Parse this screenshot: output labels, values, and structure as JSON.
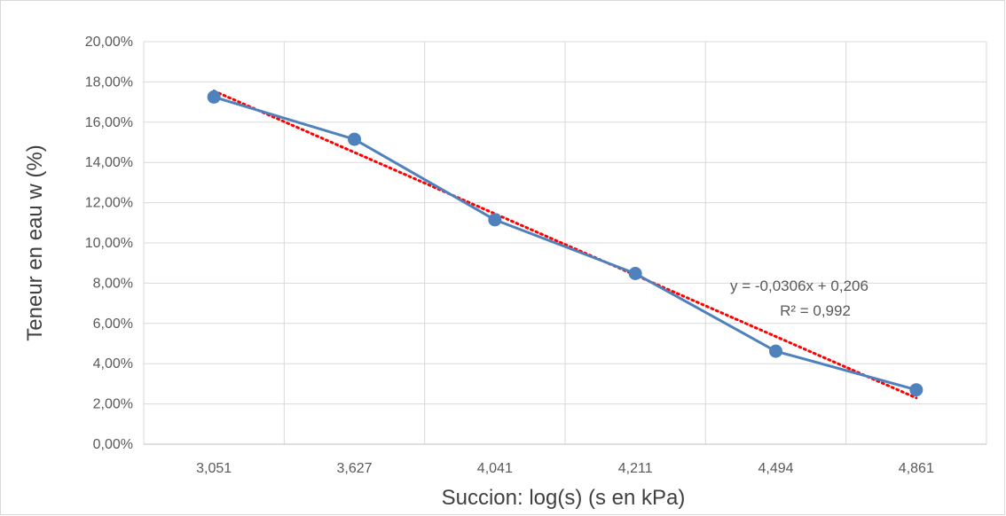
{
  "chart_data": {
    "type": "line",
    "title": "",
    "xlabel": "Succion: log(s) (s en kPa)",
    "ylabel": "Teneur en eau w (%)",
    "categories": [
      "3,051",
      "3,627",
      "4,041",
      "4,211",
      "4,494",
      "4,861"
    ],
    "series": [
      {
        "values": [
          0.1725,
          0.1515,
          0.1115,
          0.0848,
          0.0462,
          0.027
        ],
        "color": "#4f81bd",
        "marker": "circle"
      }
    ],
    "trendline": {
      "type": "linear",
      "color": "#ff0000",
      "style": "dotted",
      "start": 0.1755,
      "end": 0.023
    },
    "y_ticks": [
      "0,00%",
      "2,00%",
      "4,00%",
      "6,00%",
      "8,00%",
      "10,00%",
      "12,00%",
      "14,00%",
      "16,00%",
      "18,00%",
      "20,00%"
    ],
    "ylim": [
      0,
      0.2
    ],
    "grid": true,
    "legend": "none",
    "annotations": {
      "equation": "y = -0,0306x + 0,206",
      "r_squared": "R² = 0,992"
    }
  }
}
